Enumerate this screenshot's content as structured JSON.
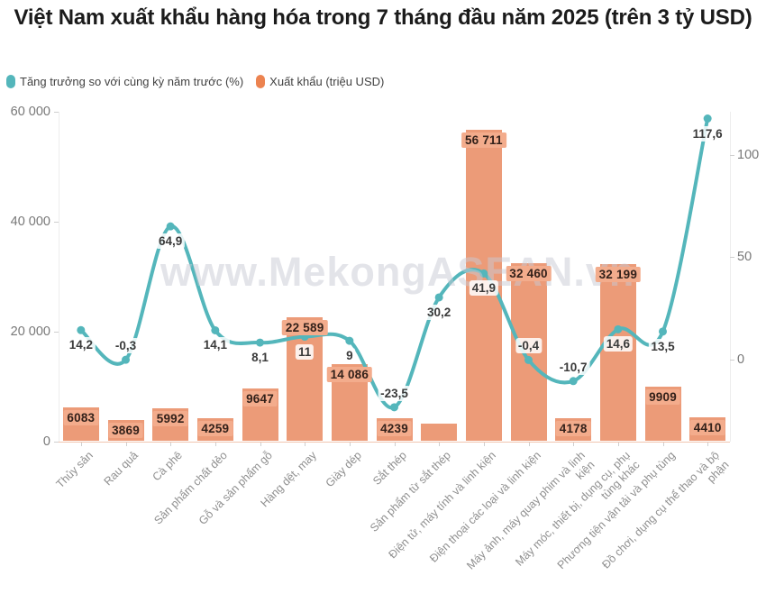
{
  "title": "Việt Nam xuất khẩu hàng hóa trong 7 tháng đầu năm 2025 (trên 3 tỷ USD)",
  "legend": [
    {
      "label": "Tăng trưởng so với cùng kỳ năm trước (%)",
      "color": "#54b6bb"
    },
    {
      "label": "Xuất khẩu (triệu USD)",
      "color": "#ec8350"
    }
  ],
  "watermark": "www.MekongASEAN.vn",
  "colors": {
    "line_teal": "#54b6bb",
    "bar_orange": "#ec9b78",
    "bar_label_bg": "#f3ac8c",
    "axis_text": "#787878",
    "category_text": "#8f8f8f",
    "title_text": "#1b1b1b",
    "watermark_text": "#c9cad5",
    "axis_baseline": "#f1c5b0"
  },
  "chart_data": {
    "type": "combo bar + line, dual axis",
    "title": "Việt Nam xuất khẩu hàng hóa trong 7 tháng đầu năm 2025 (trên 3 tỷ USD)",
    "categories": [
      "Thủy sản",
      "Rau quả",
      "Cà phê",
      "Sản phẩm chất dẻo",
      "Gỗ và sản phẩm gỗ",
      "Hàng dệt, may",
      "Giày dép",
      "Sắt thép",
      "Sản phẩm từ sắt thép",
      "Điện tử, máy tính và linh kiện",
      "Điện thoại các loại và linh kiện",
      "Máy ảnh, máy quay phim và linh kiện",
      "Máy móc, thiết bị, dụng cụ, phụ tùng khác",
      "Phương tiện vận tải và phụ tùng",
      "Đồ chơi, dụng cụ thể thao và bộ phận"
    ],
    "series": [
      {
        "name": "Xuất khẩu (triệu USD)",
        "type": "bar",
        "axis": "left",
        "values": [
          6083,
          3869,
          5992,
          4259,
          9647,
          22589,
          14086,
          4239,
          3200,
          56711,
          32460,
          4178,
          32199,
          9909,
          4410
        ],
        "labels": [
          "6083",
          "3869",
          "5992",
          "4259",
          "9647",
          "22 589",
          "14 086",
          "4239",
          "",
          "56 711",
          "32 460",
          "4178",
          "32 199",
          "9909",
          "4410"
        ]
      },
      {
        "name": "Tăng trưởng so với cùng kỳ năm trước (%)",
        "type": "line",
        "axis": "right",
        "values": [
          14.2,
          -0.3,
          64.9,
          14.1,
          8.1,
          11,
          9,
          -23.5,
          30.2,
          41.9,
          -0.4,
          -10.7,
          14.6,
          13.5,
          117.6
        ],
        "labels": [
          "14,2",
          "-0,3",
          "64,9",
          "14,1",
          "8,1",
          "11",
          "9",
          "-23,5",
          "30,2",
          "41,9",
          "-0,4",
          "-10,7",
          "14,6",
          "13,5",
          "117,6"
        ],
        "label_side": [
          "below",
          "above",
          "below",
          "below",
          "below",
          "below",
          "below",
          "above",
          "below",
          "below",
          "above",
          "above",
          "below",
          "below",
          "below"
        ]
      }
    ],
    "left_axis": {
      "min": 0,
      "max": 60000,
      "ticks": [
        {
          "label": "0",
          "value": 0
        },
        {
          "label": "20 000",
          "value": 20000
        },
        {
          "label": "40 000",
          "value": 40000
        },
        {
          "label": "60 000",
          "value": 60000
        }
      ]
    },
    "right_axis": {
      "unit": "%",
      "ticks": [
        {
          "label": "0",
          "value": 0
        },
        {
          "label": "50",
          "value": 50
        },
        {
          "label": "100",
          "value": 100
        }
      ]
    },
    "grid": "off",
    "legend_position": "top-left"
  }
}
